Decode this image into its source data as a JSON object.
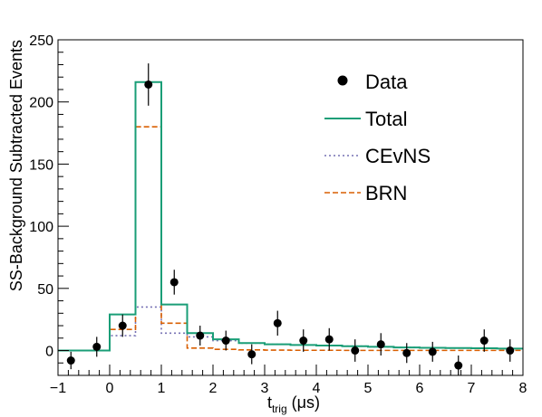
{
  "chart_data": {
    "type": "histogram",
    "xlabel": "t",
    "xlabel_sub": "trig",
    "xlabel_unit": " (μs)",
    "ylabel": "SS-Background Subtracted Events",
    "xlim": [
      -1,
      8
    ],
    "ylim": [
      -20,
      250
    ],
    "xticks": [
      -1,
      0,
      1,
      2,
      3,
      4,
      5,
      6,
      7,
      8
    ],
    "yticks": [
      0,
      50,
      100,
      150,
      200,
      250
    ],
    "legend_position": "top-right",
    "bin_edges": [
      -1,
      -0.5,
      0,
      0.5,
      1,
      1.5,
      2,
      2.5,
      3,
      3.5,
      4,
      4.5,
      5,
      5.5,
      6,
      6.5,
      7,
      7.5,
      8
    ],
    "series": [
      {
        "name": "Data",
        "kind": "points",
        "color": "#000000",
        "x": [
          -0.75,
          -0.25,
          0.25,
          0.75,
          1.25,
          1.75,
          2.25,
          2.75,
          3.25,
          3.75,
          4.25,
          4.75,
          5.25,
          5.75,
          6.25,
          6.75,
          7.25,
          7.75
        ],
        "y": [
          -8,
          3,
          20,
          214,
          55,
          12,
          8,
          -3,
          22,
          8,
          9,
          0,
          5,
          -2,
          -1,
          -12,
          8,
          0
        ],
        "yerr": [
          7,
          8,
          9,
          17,
          10,
          8,
          8,
          8,
          10,
          9,
          9,
          9,
          9,
          8,
          8,
          8,
          9,
          9
        ]
      },
      {
        "name": "Total",
        "kind": "step",
        "color": "#1a9e77",
        "dash": "",
        "values": [
          0,
          0,
          29,
          216,
          37,
          14,
          9,
          6,
          5,
          4.5,
          4,
          3.5,
          3,
          2.5,
          2.2,
          2,
          1.8,
          1.6
        ]
      },
      {
        "name": "CEvNS",
        "kind": "step",
        "color": "#7570b3",
        "dash": "2,3",
        "values": [
          0,
          0,
          12,
          35,
          14,
          11,
          8,
          6,
          5,
          4.5,
          4,
          3.5,
          3,
          2.5,
          2.2,
          2,
          1.8,
          1.6
        ]
      },
      {
        "name": "BRN",
        "kind": "step",
        "color": "#d95f02",
        "dash": "6,3",
        "values": [
          0,
          0,
          17,
          180,
          22,
          2,
          1,
          0.5,
          0.3,
          0.2,
          0.2,
          0.1,
          0.1,
          0.1,
          0.1,
          0.1,
          0.1,
          0.1
        ]
      }
    ]
  }
}
